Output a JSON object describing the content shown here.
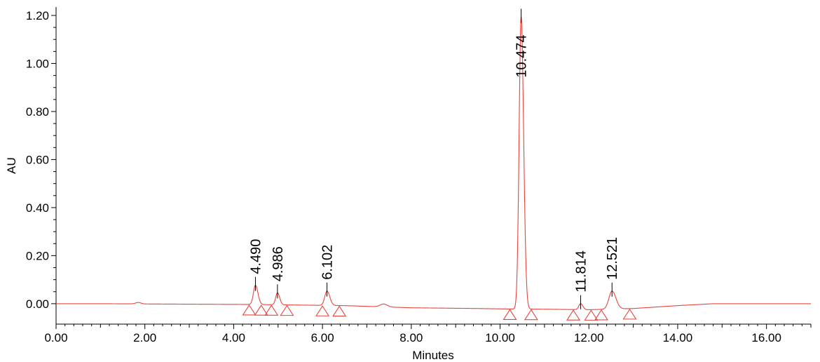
{
  "chart_data": {
    "type": "line",
    "title": "",
    "xlabel": "Minutes",
    "ylabel": "AU",
    "xlim": [
      0,
      17
    ],
    "ylim": [
      -0.085,
      1.235
    ],
    "x_ticks": [
      0,
      2,
      4,
      6,
      8,
      10,
      12,
      14,
      16
    ],
    "x_tick_labels": [
      "0.00",
      "2.00",
      "4.00",
      "6.00",
      "8.00",
      "10.00",
      "12.00",
      "14.00",
      "16.00"
    ],
    "y_ticks": [
      0,
      0.2,
      0.4,
      0.6,
      0.8,
      1.0,
      1.2
    ],
    "y_tick_labels": [
      "0.00",
      "0.20",
      "0.40",
      "0.60",
      "0.80",
      "1.00",
      "1.20"
    ],
    "grid": false,
    "trace_color": "#e8443c",
    "peaks": [
      {
        "rt": 4.49,
        "label": "4.490",
        "height": 0.08,
        "width": 0.045
      },
      {
        "rt": 4.986,
        "label": "4.986",
        "height": 0.05,
        "width": 0.04
      },
      {
        "rt": 6.102,
        "label": "6.102",
        "height": 0.06,
        "width": 0.05
      },
      {
        "rt": 10.474,
        "label": "10.474",
        "height": 1.215,
        "width": 0.045
      },
      {
        "rt": 11.814,
        "label": "11.814",
        "height": 0.025,
        "width": 0.04
      },
      {
        "rt": 12.521,
        "label": "12.521",
        "height": 0.075,
        "width": 0.07
      }
    ],
    "minor_bumps": [
      {
        "x": 1.85,
        "height": 0.006,
        "width": 0.06
      },
      {
        "x": 7.38,
        "height": 0.012,
        "width": 0.08
      }
    ],
    "baseline": [
      [
        0.0,
        0.0
      ],
      [
        1.0,
        0.0
      ],
      [
        3.0,
        -0.002
      ],
      [
        4.3,
        -0.003
      ],
      [
        6.5,
        -0.008
      ],
      [
        8.0,
        -0.017
      ],
      [
        9.5,
        -0.02
      ],
      [
        10.2,
        -0.022
      ],
      [
        11.0,
        -0.023
      ],
      [
        12.0,
        -0.025
      ],
      [
        13.0,
        -0.02
      ],
      [
        14.0,
        -0.008
      ],
      [
        14.8,
        0.0
      ],
      [
        17.0,
        0.0
      ]
    ],
    "markers": [
      4.35,
      4.62,
      4.85,
      5.2,
      6.0,
      6.38,
      10.22,
      10.7,
      11.65,
      12.05,
      12.28,
      12.92
    ]
  }
}
